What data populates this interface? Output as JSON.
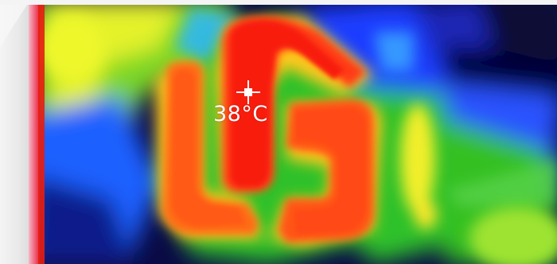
{
  "thermal_view": {
    "spot_temperature": "38°C",
    "crosshair_icon": "crosshair-icon",
    "palette": {
      "hot": "#ff2a10",
      "warm": "#ff8a1e",
      "mid": "#ffe824",
      "cool": "#22c020",
      "cold": "#1a3cff",
      "coldest": "#0a0a45"
    }
  }
}
